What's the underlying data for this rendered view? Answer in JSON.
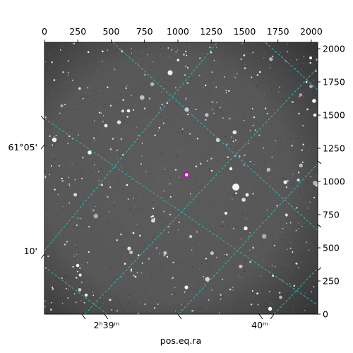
{
  "figure": {
    "xlabel": "pos.eq.ra",
    "pixel_axis_x": {
      "range": [
        0,
        2048
      ],
      "ticks": [
        "0",
        "250",
        "500",
        "750",
        "1000",
        "1250",
        "1500",
        "1750",
        "2000"
      ]
    },
    "pixel_axis_y": {
      "range": [
        0,
        2048
      ],
      "ticks": [
        "0",
        "250",
        "500",
        "750",
        "1000",
        "1250",
        "1500",
        "1750",
        "2000"
      ]
    },
    "ra_ticks": [
      "2ʰ39ᵐ",
      "40ᵐ"
    ],
    "dec_ticks": [
      "61°05'",
      "10'"
    ],
    "colors": {
      "grid": "#20c6c6",
      "marker": "#d000d0",
      "background_sky": "#5a5a5a",
      "axes": "#000000"
    },
    "marker": {
      "pixel": [
        1065,
        1050
      ],
      "shape": "circle"
    },
    "image": {
      "type": "greyscale star field",
      "grid_style": "dashed"
    }
  }
}
